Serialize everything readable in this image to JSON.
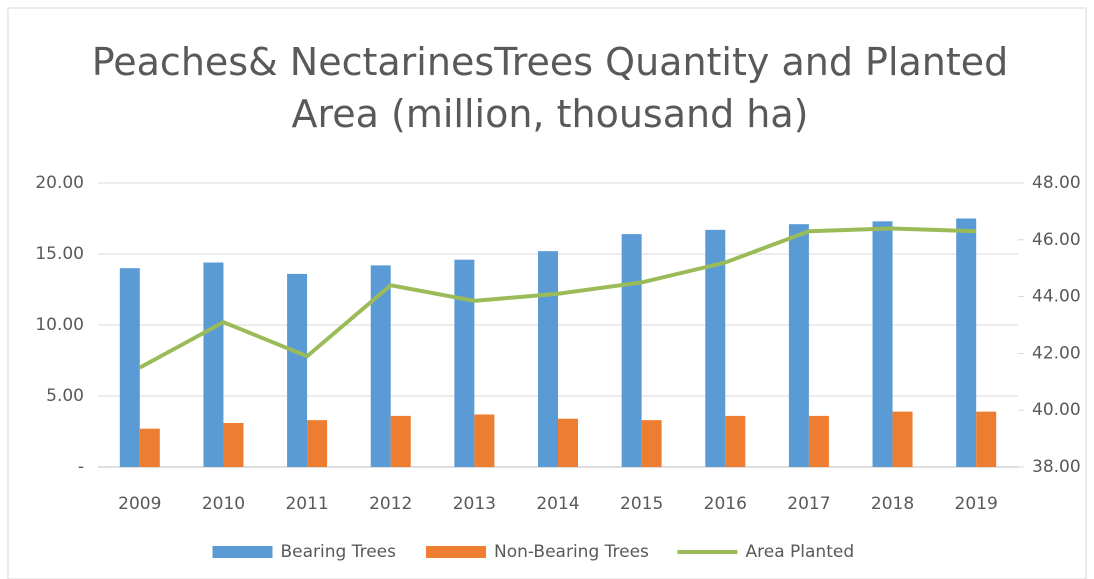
{
  "chart_data": {
    "type": "bar_line",
    "title": "Peaches& NectarinesTrees Quantity and Planted Area (million, thousand ha)",
    "categories": [
      "2009",
      "2010",
      "2011",
      "2012",
      "2013",
      "2014",
      "2015",
      "2016",
      "2017",
      "2018",
      "2019"
    ],
    "series": [
      {
        "name": "Bearing Trees",
        "color": "#5b9bd5",
        "values": [
          14.0,
          14.4,
          13.6,
          14.2,
          14.6,
          15.2,
          16.4,
          16.7,
          17.1,
          17.3,
          17.5
        ]
      },
      {
        "name": "Non-Bearing Trees",
        "color": "#ed7d31",
        "values": [
          2.7,
          3.1,
          3.3,
          3.6,
          3.7,
          3.4,
          3.3,
          3.6,
          3.6,
          3.9,
          3.9
        ]
      },
      {
        "name": "Area Planted",
        "color": "#9bbb59",
        "axis": "y2",
        "values": [
          41.5,
          43.1,
          41.9,
          44.4,
          43.85,
          44.1,
          44.5,
          45.2,
          46.3,
          46.4,
          46.3
        ]
      }
    ],
    "ylim": [
      0,
      20
    ],
    "yticks": [
      {
        "value": 0,
        "label": "-"
      },
      {
        "value": 5,
        "label": "5.00"
      },
      {
        "value": 10,
        "label": "10.00"
      },
      {
        "value": 15,
        "label": "15.00"
      },
      {
        "value": 20,
        "label": "20.00"
      }
    ],
    "y2lim": [
      38,
      48
    ],
    "y2ticks": [
      {
        "value": 38,
        "label": "38.00"
      },
      {
        "value": 40,
        "label": "40.00"
      },
      {
        "value": 42,
        "label": "42.00"
      },
      {
        "value": 44,
        "label": "44.00"
      },
      {
        "value": 46,
        "label": "46.00"
      },
      {
        "value": 48,
        "label": "48.00"
      }
    ],
    "grid": true,
    "legend": "bottom"
  }
}
